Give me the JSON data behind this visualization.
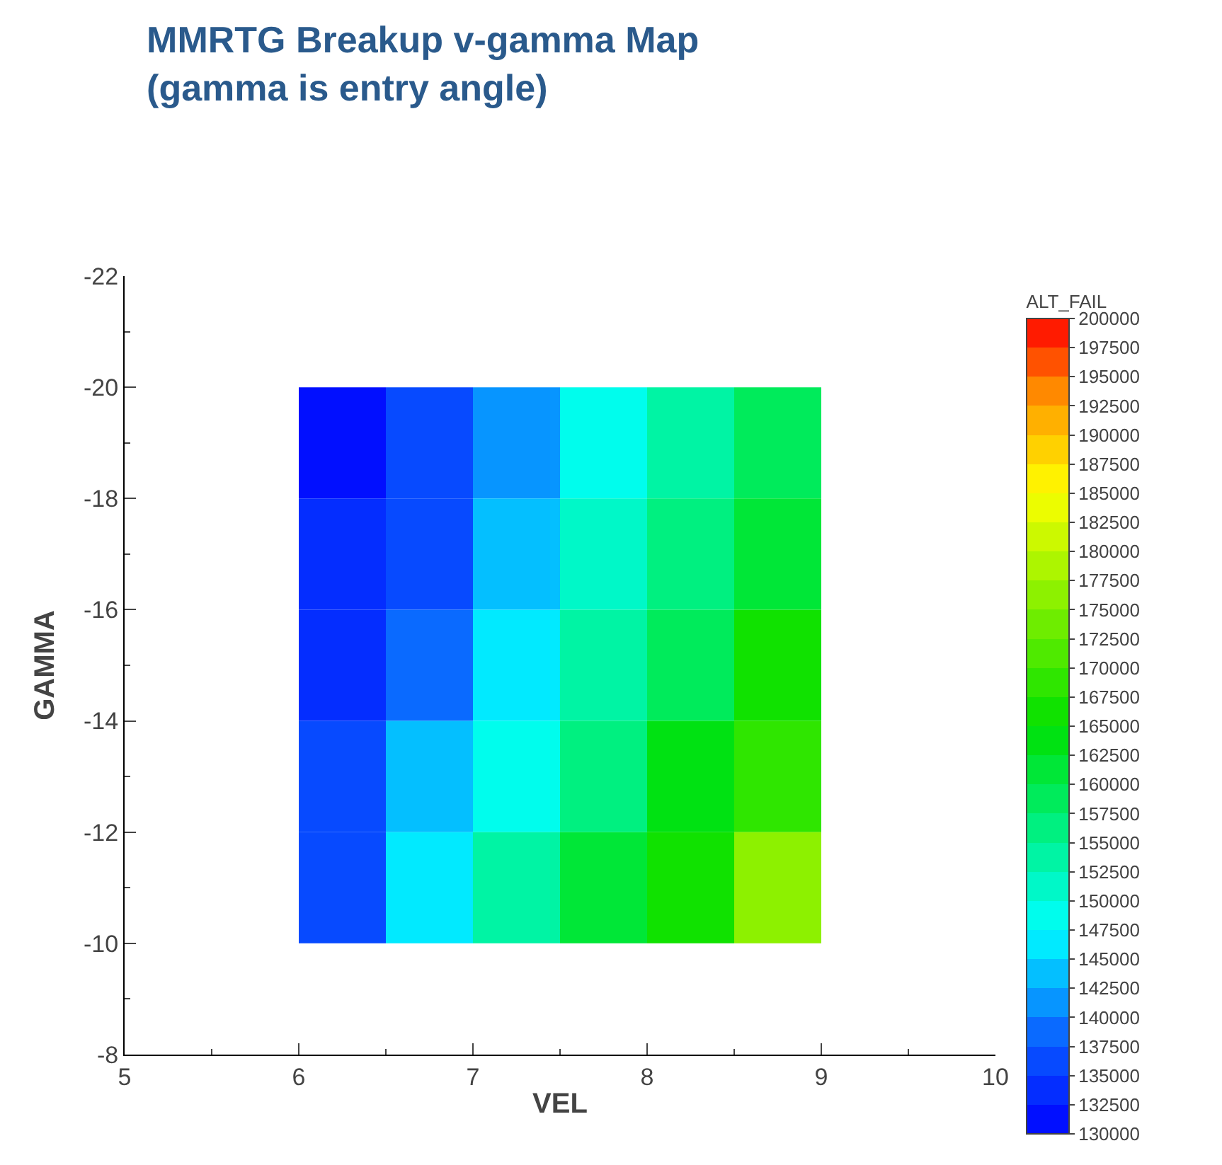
{
  "chart_data": {
    "type": "heatmap",
    "title": "MMRTG Breakup v-gamma Map\n(gamma is entry angle)",
    "xlabel": "VEL",
    "ylabel": "GAMMA",
    "clabel": "ALT_FAIL",
    "x": [
      6.25,
      6.75,
      7.25,
      7.75,
      8.25,
      8.75
    ],
    "y": [
      -19,
      -17,
      -15,
      -13,
      -11
    ],
    "cells": [
      [
        132000,
        135500,
        142000,
        148000,
        154000,
        159500
      ],
      [
        133000,
        137500,
        144000,
        150500,
        156500,
        162500
      ],
      [
        134000,
        140000,
        146500,
        153500,
        159500,
        166000
      ],
      [
        135500,
        143000,
        149500,
        157000,
        163000,
        170000
      ],
      [
        137500,
        145500,
        153000,
        160500,
        167000,
        176000
      ]
    ],
    "xlim": [
      5,
      10
    ],
    "xticks": [
      5,
      6,
      7,
      8,
      9,
      10
    ],
    "ylim": [
      -8,
      -22
    ],
    "yticks": [
      -8,
      -10,
      -12,
      -14,
      -16,
      -18,
      -20,
      -22
    ],
    "clim": [
      130000,
      200000
    ],
    "cticks": [
      130000,
      132500,
      135000,
      137500,
      140000,
      142500,
      145000,
      147500,
      150000,
      152500,
      155000,
      157500,
      160000,
      162500,
      165000,
      167500,
      170000,
      172500,
      175000,
      177500,
      180000,
      182500,
      185000,
      187500,
      190000,
      192500,
      195000,
      197500,
      200000
    ]
  }
}
